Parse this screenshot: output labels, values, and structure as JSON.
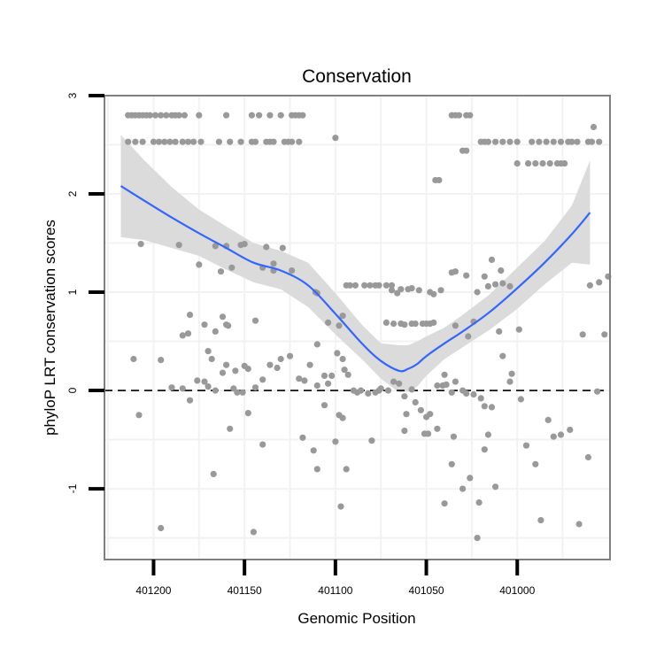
{
  "chart_data": {
    "type": "scatter",
    "title": "Conservation",
    "xlabel": "Genomic Position",
    "ylabel": "phyloP LRT conservation scores",
    "x_reversed": true,
    "xlim": [
      401227,
      400949
    ],
    "ylim": [
      -1.72,
      3.0
    ],
    "x_ticks": [
      401200,
      401150,
      401100,
      401050,
      401000
    ],
    "x_tick_labels": [
      "401200",
      "401150",
      "401100",
      "401050",
      "401000"
    ],
    "y_ticks": [
      -1,
      0,
      1,
      2,
      3
    ],
    "y_tick_labels": [
      "-1",
      "0",
      "1",
      "2",
      "3"
    ],
    "reference_line": {
      "y": 0,
      "style": "dashed"
    },
    "colors": {
      "points": "#999999",
      "smooth_line": "#3366ff",
      "ribbon": "#d9d9d9",
      "panel_border": "#7f7f7f",
      "grid": "#f2f2f2",
      "reference_line": "#000000"
    },
    "points": [
      [
        401214,
        2.8
      ],
      [
        401212,
        2.8
      ],
      [
        401210,
        2.8
      ],
      [
        401208,
        2.8
      ],
      [
        401206,
        2.8
      ],
      [
        401204,
        2.8
      ],
      [
        401202,
        2.8
      ],
      [
        401199,
        2.8
      ],
      [
        401196,
        2.8
      ],
      [
        401193,
        2.8
      ],
      [
        401190,
        2.8
      ],
      [
        401188,
        2.8
      ],
      [
        401186,
        2.8
      ],
      [
        401183,
        2.8
      ],
      [
        401175,
        2.8
      ],
      [
        401160,
        2.8
      ],
      [
        401146,
        2.8
      ],
      [
        401142,
        2.8
      ],
      [
        401136,
        2.8
      ],
      [
        401130,
        2.8
      ],
      [
        401124,
        2.8
      ],
      [
        401122,
        2.8
      ],
      [
        401120,
        2.8
      ],
      [
        401118,
        2.8
      ],
      [
        401214,
        2.53
      ],
      [
        401210,
        2.53
      ],
      [
        401206,
        2.53
      ],
      [
        401200,
        2.53
      ],
      [
        401197,
        2.53
      ],
      [
        401194,
        2.53
      ],
      [
        401191,
        2.53
      ],
      [
        401188,
        2.53
      ],
      [
        401184,
        2.53
      ],
      [
        401181,
        2.53
      ],
      [
        401178,
        2.53
      ],
      [
        401174,
        2.53
      ],
      [
        401164,
        2.53
      ],
      [
        401158,
        2.53
      ],
      [
        401152,
        2.53
      ],
      [
        401146,
        2.53
      ],
      [
        401144,
        2.53
      ],
      [
        401138,
        2.53
      ],
      [
        401136,
        2.53
      ],
      [
        401134,
        2.53
      ],
      [
        401128,
        2.53
      ],
      [
        401126,
        2.53
      ],
      [
        401124,
        2.53
      ],
      [
        401120,
        2.53
      ],
      [
        401100,
        2.57
      ],
      [
        401036,
        2.8
      ],
      [
        401034,
        2.8
      ],
      [
        401032,
        2.8
      ],
      [
        401028,
        2.8
      ],
      [
        401026,
        2.8
      ],
      [
        401020,
        2.53
      ],
      [
        401018,
        2.53
      ],
      [
        401016,
        2.53
      ],
      [
        401012,
        2.53
      ],
      [
        401008,
        2.53
      ],
      [
        401004,
        2.53
      ],
      [
        401000,
        2.53
      ],
      [
        400992,
        2.53
      ],
      [
        400988,
        2.53
      ],
      [
        400984,
        2.53
      ],
      [
        400980,
        2.53
      ],
      [
        400976,
        2.53
      ],
      [
        400972,
        2.53
      ],
      [
        400970,
        2.53
      ],
      [
        400967,
        2.53
      ],
      [
        400961,
        2.53
      ],
      [
        400959,
        2.53
      ],
      [
        400955,
        2.53
      ],
      [
        400958,
        2.68
      ],
      [
        401030,
        2.44
      ],
      [
        401028,
        2.44
      ],
      [
        401000,
        2.31
      ],
      [
        400994,
        2.31
      ],
      [
        400990,
        2.31
      ],
      [
        400986,
        2.31
      ],
      [
        400982,
        2.31
      ],
      [
        400978,
        2.31
      ],
      [
        400976,
        2.31
      ],
      [
        400974,
        2.31
      ],
      [
        401045,
        2.14
      ],
      [
        401043,
        2.14
      ],
      [
        401207,
        1.49
      ],
      [
        401186,
        1.48
      ],
      [
        401175,
        1.28
      ],
      [
        401166,
        1.47
      ],
      [
        401160,
        1.47
      ],
      [
        401152,
        1.48
      ],
      [
        401150,
        1.49
      ],
      [
        401138,
        1.46
      ],
      [
        401129,
        1.45
      ],
      [
        401124,
        1.22
      ],
      [
        401134,
        1.22
      ],
      [
        401140,
        1.25
      ],
      [
        401157,
        1.25
      ],
      [
        401163,
        1.21
      ],
      [
        401134,
        1.29
      ],
      [
        401111,
        1.0
      ],
      [
        401110,
        0.99
      ],
      [
        401094,
        1.07
      ],
      [
        401092,
        1.07
      ],
      [
        401089,
        1.07
      ],
      [
        401084,
        1.07
      ],
      [
        401081,
        1.07
      ],
      [
        401078,
        1.07
      ],
      [
        401076,
        1.07
      ],
      [
        401072,
        1.07
      ],
      [
        401069,
        1.07
      ],
      [
        401072,
        0.69
      ],
      [
        401068,
        0.68
      ],
      [
        401064,
        0.68
      ],
      [
        401062,
        0.67
      ],
      [
        401058,
        0.68
      ],
      [
        401056,
        0.68
      ],
      [
        401052,
        0.68
      ],
      [
        401050,
        0.68
      ],
      [
        401048,
        0.68
      ],
      [
        401046,
        0.69
      ],
      [
        401069,
        1.02
      ],
      [
        401066,
        0.99
      ],
      [
        401064,
        1.03
      ],
      [
        401060,
        1.03
      ],
      [
        401058,
        1.04
      ],
      [
        401054,
        1.02
      ],
      [
        401048,
        1.0
      ],
      [
        401046,
        0.98
      ],
      [
        401042,
        1.02
      ],
      [
        401036,
        1.2
      ],
      [
        401034,
        1.21
      ],
      [
        401028,
        1.17
      ],
      [
        401022,
        1.0
      ],
      [
        401016,
        1.06
      ],
      [
        401012,
        1.08
      ],
      [
        401008,
        1.09
      ],
      [
        401004,
        1.06
      ],
      [
        400960,
        1.07
      ],
      [
        400955,
        1.1
      ],
      [
        400950,
        1.16
      ],
      [
        401018,
        1.16
      ],
      [
        401014,
        1.33
      ],
      [
        401009,
        1.22
      ],
      [
        401180,
        0.77
      ],
      [
        401181,
        0.58
      ],
      [
        401196,
        0.31
      ],
      [
        401211,
        0.32
      ],
      [
        401208,
        -0.25
      ],
      [
        401196,
        -1.4
      ],
      [
        401184,
        0.56
      ],
      [
        401172,
        0.67
      ],
      [
        401170,
        0.4
      ],
      [
        401168,
        0.32
      ],
      [
        401166,
        0.6
      ],
      [
        401162,
        0.75
      ],
      [
        401160,
        0.67
      ],
      [
        401159,
        0.66
      ],
      [
        401155,
        0.2
      ],
      [
        401150,
        0.25
      ],
      [
        401148,
        0.22
      ],
      [
        401144,
        0.71
      ],
      [
        401140,
        0.11
      ],
      [
        401136,
        0.26
      ],
      [
        401132,
        0.23
      ],
      [
        401130,
        0.32
      ],
      [
        401125,
        0.35
      ],
      [
        401190,
        0.03
      ],
      [
        401184,
        0.02
      ],
      [
        401180,
        -0.1
      ],
      [
        401176,
        0.1
      ],
      [
        401172,
        0.09
      ],
      [
        401170,
        0.04
      ],
      [
        401166,
        0.0
      ],
      [
        401162,
        0.18
      ],
      [
        401160,
        0.26
      ],
      [
        401158,
        -0.39
      ],
      [
        401156,
        0.02
      ],
      [
        401154,
        -0.02
      ],
      [
        401151,
        -0.02
      ],
      [
        401148,
        -0.23
      ],
      [
        401144,
        0.03
      ],
      [
        401140,
        -0.55
      ],
      [
        401167,
        -0.85
      ],
      [
        401145,
        -1.44
      ],
      [
        401120,
        0.12
      ],
      [
        401117,
        0.1
      ],
      [
        401114,
        0.26
      ],
      [
        401110,
        0.05
      ],
      [
        401106,
        0.15
      ],
      [
        401104,
        0.07
      ],
      [
        401102,
        0.15
      ],
      [
        401099,
        0.38
      ],
      [
        401096,
        0.32
      ],
      [
        401095,
        0.21
      ],
      [
        401093,
        0.16
      ],
      [
        401090,
        0.0
      ],
      [
        401088,
        -0.02
      ],
      [
        401086,
        0.0
      ],
      [
        401082,
        -0.03
      ],
      [
        401078,
        -0.02
      ],
      [
        401076,
        0.0
      ],
      [
        401075,
        0.02
      ],
      [
        401071,
        0.0
      ],
      [
        401110,
        0.47
      ],
      [
        401104,
        0.69
      ],
      [
        401098,
        0.66
      ],
      [
        401096,
        0.76
      ],
      [
        401118,
        -0.48
      ],
      [
        401112,
        -0.61
      ],
      [
        401110,
        -0.8
      ],
      [
        401106,
        -0.15
      ],
      [
        401100,
        -0.52
      ],
      [
        401098,
        -0.25
      ],
      [
        401096,
        -0.28
      ],
      [
        401094,
        -0.8
      ],
      [
        401097,
        -1.18
      ],
      [
        401080,
        -0.51
      ],
      [
        401068,
        0.09
      ],
      [
        401065,
        0.07
      ],
      [
        401062,
        -0.06
      ],
      [
        401061,
        -0.24
      ],
      [
        401058,
        0.01
      ],
      [
        401056,
        -0.12
      ],
      [
        401053,
        -0.2
      ],
      [
        401051,
        -0.44
      ],
      [
        401049,
        -0.44
      ],
      [
        401048,
        -0.24
      ],
      [
        401044,
        0.05
      ],
      [
        401041,
        0.05
      ],
      [
        401039,
        0.06
      ],
      [
        401036,
        -0.02
      ],
      [
        401034,
        0.09
      ],
      [
        401030,
        0.0
      ],
      [
        401028,
        -0.03
      ],
      [
        401024,
        -0.04
      ],
      [
        401020,
        -0.08
      ],
      [
        401018,
        -0.16
      ],
      [
        401016,
        -0.45
      ],
      [
        401062,
        -0.41
      ],
      [
        401050,
        -0.27
      ],
      [
        401044,
        -0.39
      ],
      [
        401040,
        0.16
      ],
      [
        401035,
        -0.47
      ],
      [
        401040,
        -1.15
      ],
      [
        401036,
        -0.75
      ],
      [
        401030,
        -1.0
      ],
      [
        401026,
        -0.89
      ],
      [
        401022,
        -1.5
      ],
      [
        401021,
        -1.14
      ],
      [
        401018,
        -0.6
      ],
      [
        401012,
        -0.98
      ],
      [
        401008,
        0.35
      ],
      [
        401004,
        0.09
      ],
      [
        400995,
        -0.56
      ],
      [
        400990,
        -0.75
      ],
      [
        400987,
        -1.32
      ],
      [
        400983,
        -0.3
      ],
      [
        400980,
        -0.47
      ],
      [
        400976,
        -0.45
      ],
      [
        400971,
        -0.4
      ],
      [
        400966,
        -1.36
      ],
      [
        400961,
        -0.68
      ],
      [
        400956,
        -0.01
      ],
      [
        400952,
        0.57
      ],
      [
        400964,
        0.57
      ],
      [
        401034,
        0.66
      ],
      [
        401027,
        0.55
      ],
      [
        401024,
        0.7
      ],
      [
        401010,
        0.6
      ],
      [
        401003,
        0.17
      ],
      [
        400998,
        -0.09
      ],
      [
        400999,
        0.62
      ],
      [
        401014,
        -0.17
      ]
    ],
    "smooth_fit": {
      "x": [
        401218,
        401205,
        401190,
        401175,
        401160,
        401145,
        401130,
        401115,
        401100,
        401085,
        401075,
        401065,
        401060,
        401055,
        401050,
        401040,
        401030,
        401015,
        401000,
        400985,
        400970,
        400960
      ],
      "y": [
        2.08,
        1.93,
        1.76,
        1.6,
        1.45,
        1.3,
        1.22,
        1.07,
        0.78,
        0.47,
        0.3,
        0.2,
        0.22,
        0.27,
        0.35,
        0.48,
        0.6,
        0.8,
        1.04,
        1.3,
        1.59,
        1.81
      ],
      "lower": [
        1.56,
        1.53,
        1.45,
        1.37,
        1.23,
        1.1,
        1.03,
        0.85,
        0.57,
        0.31,
        0.12,
        -0.02,
        -0.01,
        0.04,
        0.15,
        0.32,
        0.44,
        0.62,
        0.83,
        1.08,
        1.3,
        1.28
      ],
      "upper": [
        2.6,
        2.34,
        2.07,
        1.84,
        1.67,
        1.5,
        1.42,
        1.3,
        0.99,
        0.66,
        0.48,
        0.46,
        0.46,
        0.5,
        0.55,
        0.64,
        0.77,
        0.98,
        1.25,
        1.52,
        1.88,
        2.34
      ]
    }
  }
}
